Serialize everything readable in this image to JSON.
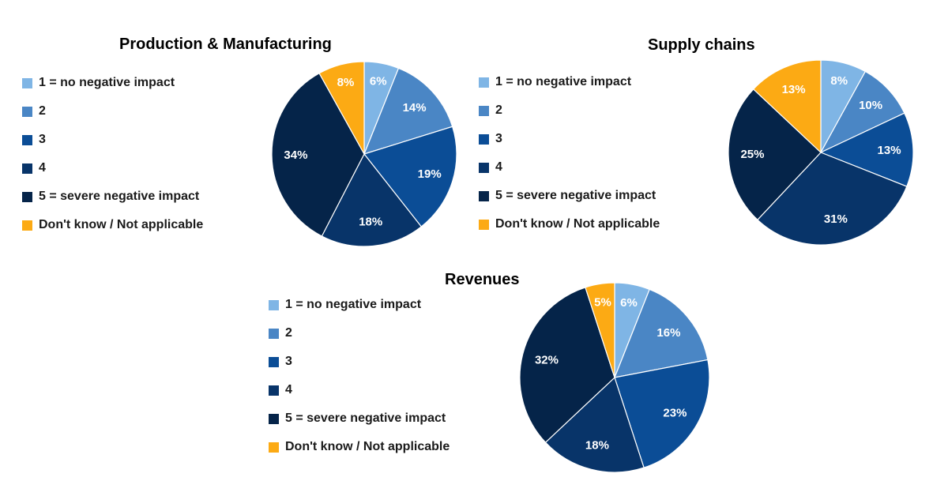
{
  "legend_labels": [
    "1 = no negative impact",
    "2",
    "3",
    "4",
    "5 = severe negative impact",
    "Don't know / Not applicable"
  ],
  "colors": [
    "#7fb5e5",
    "#4a86c5",
    "#0b4d96",
    "#083469",
    "#052449",
    "#fcaa14"
  ],
  "label_colors": [
    "#ffffff",
    "#ffffff",
    "#ffffff",
    "#ffffff",
    "#ffffff",
    "#ffffff"
  ],
  "chart_data": [
    {
      "type": "pie",
      "title": "Production & Manufacturing",
      "categories": [
        "1 = no negative impact",
        "2",
        "3",
        "4",
        "5 = severe negative impact",
        "Don't know / Not applicable"
      ],
      "values": [
        6,
        14,
        19,
        18,
        34,
        8
      ],
      "labels": [
        "6%",
        "14%",
        "19%",
        "18%",
        "34%",
        "8%"
      ],
      "legend_position": "left"
    },
    {
      "type": "pie",
      "title": "Supply chains",
      "categories": [
        "1 = no negative impact",
        "2",
        "3",
        "4",
        "5 = severe negative impact",
        "Don't know / Not applicable"
      ],
      "values": [
        8,
        10,
        13,
        31,
        25,
        13
      ],
      "labels": [
        "8%",
        "10%",
        "13%",
        "31%",
        "25%",
        "13%"
      ],
      "legend_position": "left"
    },
    {
      "type": "pie",
      "title": "Revenues",
      "categories": [
        "1 = no negative impact",
        "2",
        "3",
        "4",
        "5 = severe negative impact",
        "Don't know / Not applicable"
      ],
      "values": [
        6,
        16,
        23,
        18,
        32,
        5
      ],
      "labels": [
        "6%",
        "16%",
        "23%",
        "18%",
        "32%",
        "5%"
      ],
      "legend_position": "left"
    }
  ]
}
